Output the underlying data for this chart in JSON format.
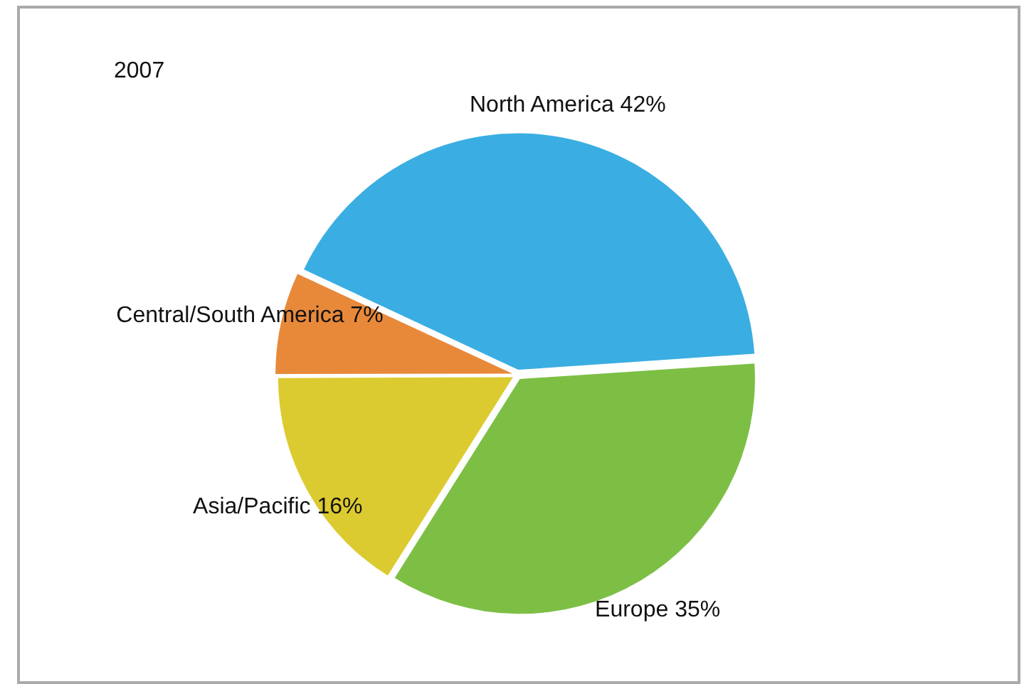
{
  "chart_data": {
    "type": "pie",
    "title": "2007",
    "categories": [
      "North America",
      "Europe",
      "Asia/Pacific",
      "Central/South America"
    ],
    "values": [
      42,
      35,
      16,
      7
    ],
    "value_labels": [
      "42%",
      "35%",
      "16%",
      "7%"
    ],
    "colors": [
      "#3aaee2",
      "#7dbf45",
      "#dccb30",
      "#e8893a"
    ],
    "legend": false
  }
}
